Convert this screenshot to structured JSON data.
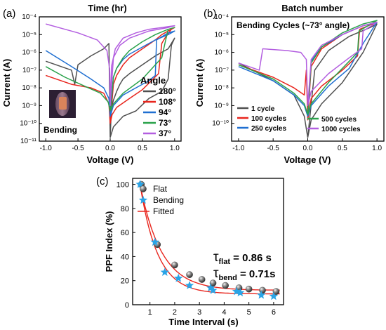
{
  "chart_data": [
    {
      "panel": "(a)",
      "type": "line",
      "title": "Time (hr)",
      "xlabel": "Voltage (V)",
      "ylabel": "Current (A)",
      "xlim": [
        -1.1,
        1.1
      ],
      "ylim_log10": [
        -11,
        -4
      ],
      "log_y": true,
      "x_ticks": [
        "-1.0",
        "-0.5",
        "0.0",
        "0.5",
        "1.0"
      ],
      "y_ticks": [
        "10⁻¹¹",
        "10⁻¹⁰",
        "10⁻⁹",
        "10⁻⁸",
        "10⁻⁷",
        "10⁻⁶",
        "10⁻⁵",
        "10⁻⁴"
      ],
      "legend_title": "Angle",
      "legend_position": "right",
      "inset_label": "Bending",
      "series": [
        {
          "name": "180°",
          "color": "#505050",
          "x": [
            -1.0,
            -0.6,
            -0.55,
            -0.5,
            -0.3,
            -0.1,
            -0.02,
            0.0,
            0.05,
            0.2,
            0.4,
            0.6,
            0.8,
            0.9,
            0.95,
            1.0,
            0.9,
            0.7,
            0.5,
            0.3,
            0.2,
            0.15,
            0.1,
            0.05,
            0.02,
            0.0
          ],
          "y_log10": [
            -6.5,
            -7.0,
            -7.8,
            -6.7,
            -6.2,
            -5.8,
            -5.5,
            -10.8,
            -10.2,
            -9.6,
            -9.3,
            -8.6,
            -8.2,
            -7.5,
            -5.6,
            -5.2,
            -5.8,
            -6.2,
            -6.7,
            -7.2,
            -7.5,
            -7.8,
            -8.2,
            -8.7,
            -9.1,
            -10.8
          ]
        },
        {
          "name": "108°",
          "color": "#e8251d",
          "x": [
            -1.0,
            -0.6,
            -0.3,
            -0.1,
            -0.02,
            0.0,
            0.03,
            0.1,
            0.3,
            0.5,
            0.75,
            0.8,
            0.85,
            0.95,
            1.0,
            0.9,
            0.8,
            0.7,
            0.5,
            0.3,
            0.2,
            0.1,
            0.05,
            0.0
          ],
          "y_log10": [
            -7.3,
            -7.8,
            -8.0,
            -8.3,
            -8.9,
            -10.0,
            -9.5,
            -9.1,
            -8.6,
            -8.1,
            -7.2,
            -5.5,
            -5.2,
            -4.7,
            -4.6,
            -4.8,
            -5.0,
            -5.3,
            -5.8,
            -6.3,
            -6.7,
            -7.3,
            -7.8,
            -10.0
          ]
        },
        {
          "name": "94°",
          "color": "#1f6fd1",
          "x": [
            -1.0,
            -0.6,
            -0.3,
            -0.1,
            -0.02,
            0.0,
            0.05,
            0.2,
            0.4,
            0.6,
            0.7,
            0.72,
            0.9,
            1.0,
            0.9,
            0.7,
            0.5,
            0.3,
            0.2,
            0.1,
            0.05,
            0.0
          ],
          "y_log10": [
            -5.9,
            -6.8,
            -7.5,
            -8.0,
            -8.6,
            -9.6,
            -9.0,
            -8.4,
            -8.0,
            -7.6,
            -7.3,
            -5.3,
            -4.9,
            -4.8,
            -5.0,
            -5.3,
            -5.7,
            -6.1,
            -6.4,
            -6.9,
            -7.4,
            -9.6
          ]
        },
        {
          "name": "73°",
          "color": "#2aa24b",
          "x": [
            -1.0,
            -0.7,
            -0.4,
            -0.15,
            -0.03,
            0.0,
            0.05,
            0.2,
            0.5,
            0.8,
            0.85,
            0.9,
            1.0,
            0.9,
            0.7,
            0.5,
            0.3,
            0.2,
            0.1,
            0.05,
            0.0
          ],
          "y_log10": [
            -6.8,
            -7.4,
            -7.9,
            -8.3,
            -8.8,
            -9.3,
            -8.9,
            -8.3,
            -7.5,
            -6.3,
            -5.5,
            -4.7,
            -4.6,
            -4.7,
            -5.0,
            -5.4,
            -5.9,
            -6.3,
            -6.9,
            -7.4,
            -9.3
          ]
        },
        {
          "name": "37°",
          "color": "#b35ee0",
          "x": [
            -1.0,
            -0.8,
            -0.5,
            -0.2,
            -0.05,
            -0.01,
            0.0,
            0.02,
            0.08,
            0.2,
            0.4,
            0.6,
            0.8,
            0.9,
            1.0,
            0.9,
            0.6,
            0.3,
            0.15,
            0.05,
            0.0
          ],
          "y_log10": [
            -4.4,
            -4.6,
            -4.9,
            -5.3,
            -5.9,
            -6.9,
            -9.0,
            -6.8,
            -5.8,
            -5.2,
            -4.9,
            -4.7,
            -4.6,
            -4.55,
            -4.5,
            -4.6,
            -4.8,
            -5.2,
            -5.6,
            -6.3,
            -9.0
          ]
        }
      ]
    },
    {
      "panel": "(b)",
      "type": "line",
      "title": "Batch number",
      "subtitle": "Bending Cycles (~73° angle)",
      "xlabel": "Voltage (V)",
      "ylabel": "Current (A)",
      "xlim": [
        -1.1,
        1.1
      ],
      "ylim_log10": [
        -11,
        -4
      ],
      "log_y": true,
      "x_ticks": [
        "-1.0",
        "-0.5",
        "0.0",
        "0.5",
        "1.0"
      ],
      "y_ticks": [
        "10⁻¹⁰",
        "10⁻⁹",
        "10⁻⁸",
        "10⁻⁷",
        "10⁻⁶",
        "10⁻⁵",
        "10⁻⁴"
      ],
      "legend_position": "bottom",
      "series": [
        {
          "name": "1 cycle",
          "color": "#505050",
          "x": [
            -1.0,
            -0.5,
            -0.2,
            -0.05,
            0.0,
            0.05,
            0.2,
            0.5,
            0.8,
            1.0,
            0.9,
            0.6,
            0.3,
            0.1,
            0.0
          ],
          "y_log10": [
            -6.6,
            -7.6,
            -8.4,
            -9.6,
            -10.8,
            -9.8,
            -8.9,
            -7.7,
            -6.0,
            -4.4,
            -4.6,
            -5.1,
            -5.9,
            -7.0,
            -10.8
          ]
        },
        {
          "name": "100 cycles",
          "color": "#e8251d",
          "x": [
            -1.0,
            -0.5,
            -0.2,
            -0.05,
            -0.02,
            0.0,
            0.05,
            0.2,
            0.5,
            0.72,
            0.75,
            1.0,
            0.8,
            0.5,
            0.2,
            0.05,
            0.0
          ],
          "y_log10": [
            -6.7,
            -7.4,
            -8.0,
            -8.4,
            -7.0,
            -9.8,
            -8.6,
            -7.9,
            -7.0,
            -6.2,
            -4.7,
            -4.3,
            -4.5,
            -5.0,
            -5.8,
            -6.8,
            -9.8
          ]
        },
        {
          "name": "250 cycles",
          "color": "#1f6fd1",
          "x": [
            -1.0,
            -0.5,
            -0.2,
            -0.05,
            0.0,
            0.05,
            0.3,
            0.6,
            0.8,
            1.0,
            0.8,
            0.5,
            0.2,
            0.05,
            0.0
          ],
          "y_log10": [
            -6.8,
            -7.6,
            -8.4,
            -9.0,
            -9.6,
            -9.0,
            -7.9,
            -6.9,
            -5.5,
            -4.3,
            -4.5,
            -5.0,
            -5.7,
            -6.5,
            -9.6
          ]
        },
        {
          "name": "500 cycles",
          "color": "#2aa24b",
          "x": [
            -1.0,
            -0.5,
            -0.2,
            -0.05,
            0.0,
            0.05,
            0.3,
            0.6,
            0.72,
            0.74,
            1.0,
            0.8,
            0.5,
            0.2,
            0.05,
            0.0
          ],
          "y_log10": [
            -6.7,
            -7.5,
            -8.3,
            -8.9,
            -9.5,
            -8.9,
            -7.7,
            -6.5,
            -6.0,
            -4.8,
            -4.2,
            -4.4,
            -4.9,
            -5.7,
            -6.6,
            -9.5
          ]
        },
        {
          "name": "1000 cycles",
          "color": "#b35ee0",
          "x": [
            -1.0,
            -0.7,
            -0.65,
            -0.3,
            -0.1,
            -0.02,
            0.0,
            0.05,
            0.3,
            0.6,
            0.78,
            0.8,
            1.0,
            0.8,
            0.5,
            0.2,
            0.05,
            0.0
          ],
          "y_log10": [
            -6.6,
            -7.0,
            -5.8,
            -5.9,
            -6.0,
            -6.4,
            -9.0,
            -8.2,
            -7.2,
            -6.3,
            -5.8,
            -4.8,
            -4.3,
            -4.5,
            -5.0,
            -5.6,
            -6.4,
            -9.0
          ]
        }
      ]
    },
    {
      "panel": "(c)",
      "type": "scatter",
      "xlabel": "Time Interval (s)",
      "ylabel": "PPF Index (%)",
      "xlim": [
        0.3,
        6.4
      ],
      "ylim": [
        0,
        105
      ],
      "x_ticks": [
        "1",
        "2",
        "3",
        "4",
        "5",
        "6"
      ],
      "y_ticks": [
        "0",
        "20",
        "40",
        "60",
        "80",
        "100"
      ],
      "legend_position": "top-left",
      "annotations": [
        {
          "symbol": "τ",
          "sub": "flat",
          "value": " = 0.86 s"
        },
        {
          "symbol": "τ",
          "sub": "bend",
          "value": " = 0.71s"
        }
      ],
      "series": [
        {
          "name": "Flat",
          "marker": "sphere",
          "color": "#777777",
          "x": [
            0.65,
            1.3,
            2.0,
            2.6,
            3.1,
            3.55,
            4.05,
            4.6,
            5.0,
            5.55,
            6.1
          ],
          "y": [
            100,
            50,
            33,
            25,
            21,
            18,
            16,
            14,
            13,
            12,
            11
          ]
        },
        {
          "name": "Bending",
          "marker": "star",
          "color": "#2aa4e6",
          "x": [
            0.6,
            1.2,
            1.6,
            2.15,
            2.6,
            3.45,
            3.55,
            4.5,
            4.65,
            5.5,
            6.0
          ],
          "y": [
            100,
            52,
            27,
            22,
            16,
            14,
            12,
            11,
            10,
            8,
            7
          ]
        },
        {
          "name": "Fitted",
          "type": "line",
          "color": "#e8251d",
          "curves": [
            {
              "A": 88,
              "tau": 0.86,
              "x0": 0.6,
              "offset": 12
            },
            {
              "A": 91,
              "tau": 0.71,
              "x0": 0.6,
              "offset": 9
            }
          ]
        }
      ]
    }
  ]
}
